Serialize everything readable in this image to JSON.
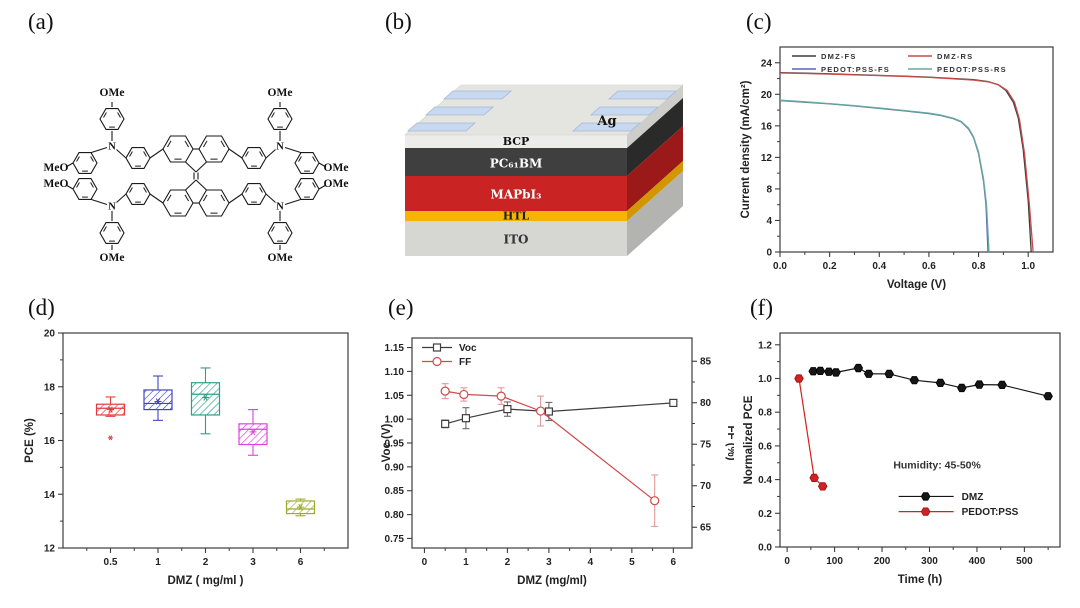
{
  "figure": {
    "background": "#ffffff",
    "panels": [
      {
        "letter": "(a)"
      },
      {
        "letter": "(b)"
      },
      {
        "letter": "(c)"
      },
      {
        "letter": "(d)"
      },
      {
        "letter": "(e)"
      },
      {
        "letter": "(f)"
      }
    ]
  },
  "molecule": {
    "substituent_labels": [
      "OMe",
      "OMe",
      "MeO",
      "OMe",
      "MeO",
      "OMe",
      "OMe",
      "OMe"
    ],
    "atom_labels": [
      "N",
      "N",
      "N",
      "N"
    ]
  },
  "device": {
    "electrode_label": "Ag",
    "pad_color": "#c8d8ee",
    "pad_edge_color": "#a3b9d8",
    "top_color": "#e4e4e1",
    "layers": [
      {
        "name": "BCP",
        "face_color": "#ececea",
        "side_color": "#cdcdca",
        "text_color": "#111111"
      },
      {
        "name": "PC₆₁BM",
        "face_color": "#3f3f3f",
        "side_color": "#2a2a2a",
        "text_color": "#ffffff"
      },
      {
        "name": "MAPbI₃",
        "face_color": "#c92323",
        "side_color": "#9c1919",
        "text_color": "#ffffff"
      },
      {
        "name": "HTL",
        "face_color": "#f6b400",
        "side_color": "#d29700",
        "text_color": "#1a1a1a"
      },
      {
        "name": "ITO",
        "face_color": "#d6d6d3",
        "side_color": "#b3b3b0",
        "text_color": "#333333"
      }
    ]
  },
  "chart_data": [
    {
      "id": "jv-curves",
      "type": "line",
      "xlabel": "Voltage (V)",
      "ylabel": "Current density (mA/cm²)",
      "xlim": [
        0,
        1.1
      ],
      "ylim": [
        0,
        26
      ],
      "xticks": [
        [
          0,
          "0.0"
        ],
        [
          0.2,
          "0.2"
        ],
        [
          0.4,
          "0.4"
        ],
        [
          0.6,
          "0.6"
        ],
        [
          0.8,
          "0.8"
        ],
        [
          1.0,
          "1.0"
        ]
      ],
      "yticks": [
        [
          0,
          "0"
        ],
        [
          4,
          "4"
        ],
        [
          8,
          "8"
        ],
        [
          12,
          "12"
        ],
        [
          16,
          "16"
        ],
        [
          20,
          "20"
        ],
        [
          24,
          "24"
        ]
      ],
      "legend_position": "top-inside-two-columns",
      "series": [
        {
          "name": "DMZ-FS",
          "color": "#3d3d3d",
          "points": [
            [
              0,
              22.75
            ],
            [
              0.1,
              22.68
            ],
            [
              0.2,
              22.6
            ],
            [
              0.3,
              22.5
            ],
            [
              0.4,
              22.4
            ],
            [
              0.5,
              22.3
            ],
            [
              0.6,
              22.18
            ],
            [
              0.7,
              22.0
            ],
            [
              0.78,
              21.85
            ],
            [
              0.84,
              21.6
            ],
            [
              0.88,
              21.2
            ],
            [
              0.91,
              20.5
            ],
            [
              0.94,
              19.0
            ],
            [
              0.96,
              17.0
            ],
            [
              0.98,
              13.0
            ],
            [
              1.0,
              6.5
            ],
            [
              1.012,
              0
            ]
          ]
        },
        {
          "name": "DMZ-RS",
          "color": "#c84b4b",
          "points": [
            [
              0,
              22.7
            ],
            [
              0.1,
              22.64
            ],
            [
              0.2,
              22.56
            ],
            [
              0.3,
              22.46
            ],
            [
              0.4,
              22.37
            ],
            [
              0.5,
              22.27
            ],
            [
              0.6,
              22.15
            ],
            [
              0.7,
              21.97
            ],
            [
              0.78,
              21.8
            ],
            [
              0.84,
              21.57
            ],
            [
              0.88,
              21.22
            ],
            [
              0.915,
              20.5
            ],
            [
              0.945,
              19.0
            ],
            [
              0.965,
              16.8
            ],
            [
              0.985,
              12.5
            ],
            [
              1.005,
              6.0
            ],
            [
              1.02,
              0
            ]
          ]
        },
        {
          "name": "PEDOT:PSS-FS",
          "color": "#5b63b7",
          "points": [
            [
              0,
              19.2
            ],
            [
              0.1,
              19.0
            ],
            [
              0.2,
              18.78
            ],
            [
              0.3,
              18.52
            ],
            [
              0.4,
              18.22
            ],
            [
              0.5,
              17.9
            ],
            [
              0.6,
              17.55
            ],
            [
              0.65,
              17.3
            ],
            [
              0.7,
              16.9
            ],
            [
              0.73,
              16.5
            ],
            [
              0.76,
              15.6
            ],
            [
              0.78,
              14.5
            ],
            [
              0.8,
              12.5
            ],
            [
              0.82,
              9.0
            ],
            [
              0.83,
              6.0
            ],
            [
              0.838,
              0
            ]
          ]
        },
        {
          "name": "PEDOT:PSS-RS",
          "color": "#66a89b",
          "points": [
            [
              0,
              19.25
            ],
            [
              0.1,
              19.05
            ],
            [
              0.2,
              18.82
            ],
            [
              0.3,
              18.56
            ],
            [
              0.4,
              18.26
            ],
            [
              0.5,
              17.95
            ],
            [
              0.6,
              17.6
            ],
            [
              0.65,
              17.35
            ],
            [
              0.7,
              16.95
            ],
            [
              0.73,
              16.55
            ],
            [
              0.76,
              15.7
            ],
            [
              0.78,
              14.6
            ],
            [
              0.8,
              12.7
            ],
            [
              0.82,
              9.3
            ],
            [
              0.832,
              6.0
            ],
            [
              0.842,
              0
            ]
          ]
        }
      ]
    },
    {
      "id": "pce-boxplot",
      "type": "box",
      "xlabel": "DMZ ( mg/ml )",
      "ylabel": "PCE (%)",
      "ylim": [
        12,
        20
      ],
      "yticks": [
        [
          12,
          "12"
        ],
        [
          14,
          "14"
        ],
        [
          16,
          "16"
        ],
        [
          18,
          "18"
        ],
        [
          20,
          "20"
        ]
      ],
      "categories": [
        "0.5",
        "1",
        "2",
        "3",
        "6"
      ],
      "boxes": [
        {
          "color": "#e03a3a",
          "q1": 16.95,
          "q3": 17.35,
          "median": 17.2,
          "mean": 17.15,
          "whisker_low": 16.9,
          "whisker_high": 17.62,
          "outliers": [
            16.1
          ]
        },
        {
          "color": "#4343c6",
          "q1": 17.15,
          "q3": 17.88,
          "median": 17.38,
          "mean": 17.45,
          "whisker_low": 16.75,
          "whisker_high": 18.4,
          "outliers": []
        },
        {
          "color": "#2f9e88",
          "q1": 16.95,
          "q3": 18.15,
          "median": 17.72,
          "mean": 17.6,
          "whisker_low": 16.25,
          "whisker_high": 18.7,
          "outliers": []
        },
        {
          "color": "#e040e0",
          "q1": 15.85,
          "q3": 16.62,
          "median": 16.42,
          "mean": 16.32,
          "whisker_low": 15.45,
          "whisker_high": 17.15,
          "outliers": []
        },
        {
          "color": "#9dac2d",
          "q1": 13.28,
          "q3": 13.75,
          "median": 13.45,
          "mean": 13.52,
          "whisker_low": 13.2,
          "whisker_high": 13.82,
          "outliers": []
        }
      ]
    },
    {
      "id": "voc-ff",
      "type": "dual-line",
      "xlabel": "DMZ (mg/ml)",
      "ylabel_left": "Voc (V)",
      "ylabel_right": "FF (%)",
      "xlim": [
        -0.3,
        6.45
      ],
      "xticks": [
        [
          0,
          "0"
        ],
        [
          1,
          "1"
        ],
        [
          2,
          "2"
        ],
        [
          3,
          "3"
        ],
        [
          4,
          "4"
        ],
        [
          5,
          "5"
        ],
        [
          6,
          "6"
        ]
      ],
      "ylim_left": [
        0.73,
        1.17
      ],
      "yticks_left": [
        [
          0.75,
          "0.75"
        ],
        [
          0.8,
          "0.80"
        ],
        [
          0.85,
          "0.85"
        ],
        [
          0.9,
          "0.90"
        ],
        [
          0.95,
          "0.95"
        ],
        [
          1.0,
          "1.00"
        ],
        [
          1.05,
          "1.05"
        ],
        [
          1.1,
          "1.10"
        ],
        [
          1.15,
          "1.15"
        ]
      ],
      "ylim_right": [
        62.5,
        87.8
      ],
      "yticks_right": [
        [
          65,
          "65"
        ],
        [
          70,
          "70"
        ],
        [
          75,
          "75"
        ],
        [
          80,
          "80"
        ],
        [
          85,
          "85"
        ]
      ],
      "series": [
        {
          "name": "Voc",
          "axis": "left",
          "color": "#3d3d3d",
          "marker": "square-open",
          "x": [
            0.5,
            1,
            2,
            3,
            6
          ],
          "y": [
            0.99,
            1.002,
            1.021,
            1.016,
            1.034
          ],
          "yerr": [
            0.008,
            0.022,
            0.015,
            0.019,
            0.004
          ]
        },
        {
          "name": "FF",
          "axis": "right",
          "color": "#cf4a4a",
          "marker": "circle-open",
          "x": [
            0.5,
            0.95,
            1.85,
            2.8,
            5.55
          ],
          "y": [
            81.4,
            81.0,
            80.8,
            79.0,
            68.2
          ],
          "yerr": [
            0.9,
            0.8,
            1.0,
            1.8,
            3.1
          ]
        }
      ]
    },
    {
      "id": "stability",
      "type": "line-markers",
      "xlabel": "Time (h)",
      "ylabel": "Normalized PCE",
      "xlim": [
        -15,
        575
      ],
      "ylim": [
        0,
        1.27
      ],
      "xticks": [
        [
          0,
          "0"
        ],
        [
          100,
          "100"
        ],
        [
          200,
          "200"
        ],
        [
          300,
          "300"
        ],
        [
          400,
          "400"
        ],
        [
          500,
          "500"
        ]
      ],
      "yticks": [
        [
          0,
          "0.0"
        ],
        [
          0.2,
          "0.2"
        ],
        [
          0.4,
          "0.4"
        ],
        [
          0.6,
          "0.6"
        ],
        [
          0.8,
          "0.8"
        ],
        [
          1.0,
          "1.0"
        ],
        [
          1.2,
          "1.2"
        ]
      ],
      "annotation": "Humidity: 45-50%",
      "series": [
        {
          "name": "DMZ",
          "color": "#161616",
          "x": [
            55,
            70,
            88,
            103,
            150,
            172,
            215,
            268,
            323,
            368,
            405,
            453,
            550
          ],
          "y": [
            1.043,
            1.045,
            1.04,
            1.036,
            1.062,
            1.028,
            1.027,
            0.99,
            0.974,
            0.944,
            0.964,
            0.962,
            0.895
          ]
        },
        {
          "name": "PEDOT:PSS",
          "color": "#d42020",
          "x": [
            25,
            57,
            75
          ],
          "y": [
            1.0,
            0.41,
            0.36
          ]
        }
      ]
    }
  ]
}
